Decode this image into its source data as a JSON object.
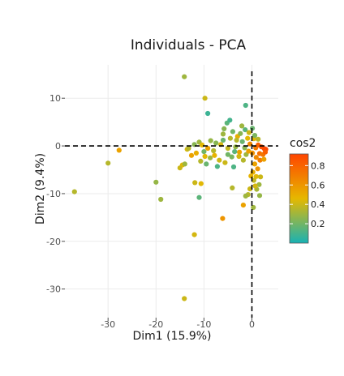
{
  "chart_data": {
    "type": "scatter",
    "title": "Individuals - PCA",
    "xlabel": "Dim1 (15.9%)",
    "ylabel": "Dim2 (9.4%)",
    "xlim": [
      -39,
      5.5
    ],
    "ylim": [
      -36,
      17
    ],
    "x_ticks": [
      -30,
      -20,
      -10,
      0
    ],
    "x_tick_labels": [
      "-30",
      "-20",
      "-10",
      "0"
    ],
    "y_ticks": [
      10,
      0,
      -10,
      -20,
      -30
    ],
    "y_tick_labels": [
      "10",
      "0",
      "-10",
      "-20",
      "-30"
    ],
    "grid": true,
    "reference_lines": {
      "x": 0,
      "y": 0,
      "style": "dashed"
    },
    "color_variable": "cos2",
    "legend": {
      "title": "cos2",
      "placement": "right",
      "ticks": [
        0.8,
        0.6,
        0.4,
        0.2
      ],
      "tick_labels": [
        "0.8",
        "0.6",
        "0.4",
        "0.2"
      ],
      "range": [
        0.0,
        0.92
      ],
      "gradient": [
        "#18b2b4",
        "#e6b800",
        "#ff4500"
      ]
    },
    "points": [
      {
        "x": -14.1,
        "y": 14.5,
        "cos2": 0.3
      },
      {
        "x": -9.8,
        "y": 10.0,
        "cos2": 0.4
      },
      {
        "x": -9.2,
        "y": 6.8,
        "cos2": 0.08
      },
      {
        "x": -1.3,
        "y": 8.5,
        "cos2": 0.12
      },
      {
        "x": -27.7,
        "y": -0.9,
        "cos2": 0.55
      },
      {
        "x": -30.0,
        "y": -3.6,
        "cos2": 0.35
      },
      {
        "x": -37.0,
        "y": -9.6,
        "cos2": 0.35
      },
      {
        "x": -20.0,
        "y": -7.6,
        "cos2": 0.28
      },
      {
        "x": -19.0,
        "y": -11.2,
        "cos2": 0.3
      },
      {
        "x": -11.9,
        "y": -7.7,
        "cos2": 0.4
      },
      {
        "x": -10.6,
        "y": -7.9,
        "cos2": 0.45
      },
      {
        "x": -11.0,
        "y": -10.8,
        "cos2": 0.15
      },
      {
        "x": -12.0,
        "y": -18.6,
        "cos2": 0.42
      },
      {
        "x": -6.1,
        "y": -15.2,
        "cos2": 0.6
      },
      {
        "x": -14.1,
        "y": -32.0,
        "cos2": 0.4
      },
      {
        "x": -14.5,
        "y": -4.0,
        "cos2": 0.45
      },
      {
        "x": -15.0,
        "y": -4.6,
        "cos2": 0.4
      },
      {
        "x": -14.0,
        "y": -3.8,
        "cos2": 0.3
      },
      {
        "x": -12.6,
        "y": -2.0,
        "cos2": 0.55
      },
      {
        "x": -13.5,
        "y": -0.7,
        "cos2": 0.42
      },
      {
        "x": -12.0,
        "y": 0.3,
        "cos2": 0.25
      },
      {
        "x": -11.0,
        "y": 0.8,
        "cos2": 0.3
      },
      {
        "x": -10.4,
        "y": 0.2,
        "cos2": 0.45
      },
      {
        "x": -11.6,
        "y": -1.5,
        "cos2": 0.5
      },
      {
        "x": -10.0,
        "y": -1.2,
        "cos2": 0.2
      },
      {
        "x": -9.5,
        "y": -3.8,
        "cos2": 0.18
      },
      {
        "x": -8.7,
        "y": -2.5,
        "cos2": 0.3
      },
      {
        "x": -8.0,
        "y": -1.0,
        "cos2": 0.35
      },
      {
        "x": -7.5,
        "y": 0.6,
        "cos2": 0.25
      },
      {
        "x": -6.8,
        "y": -3.0,
        "cos2": 0.4
      },
      {
        "x": -7.2,
        "y": -4.3,
        "cos2": 0.12
      },
      {
        "x": -6.0,
        "y": 2.5,
        "cos2": 0.3
      },
      {
        "x": -5.2,
        "y": 4.8,
        "cos2": 0.15
      },
      {
        "x": -4.6,
        "y": 5.4,
        "cos2": 0.1
      },
      {
        "x": -5.8,
        "y": 3.6,
        "cos2": 0.25
      },
      {
        "x": -4.0,
        "y": 3.0,
        "cos2": 0.2
      },
      {
        "x": -3.0,
        "y": 2.0,
        "cos2": 0.5
      },
      {
        "x": -2.1,
        "y": 4.2,
        "cos2": 0.3
      },
      {
        "x": -1.4,
        "y": 3.4,
        "cos2": 0.15
      },
      {
        "x": -0.6,
        "y": 2.8,
        "cos2": 0.4
      },
      {
        "x": -5.0,
        "y": -0.5,
        "cos2": 0.38
      },
      {
        "x": -4.2,
        "y": -2.3,
        "cos2": 0.22
      },
      {
        "x": -3.8,
        "y": -4.4,
        "cos2": 0.12
      },
      {
        "x": -3.4,
        "y": -0.2,
        "cos2": 0.28
      },
      {
        "x": -2.6,
        "y": -1.3,
        "cos2": 0.55
      },
      {
        "x": -2.0,
        "y": 0.9,
        "cos2": 0.18
      },
      {
        "x": -1.8,
        "y": -3.0,
        "cos2": 0.35
      },
      {
        "x": -1.2,
        "y": -1.8,
        "cos2": 0.3
      },
      {
        "x": -0.4,
        "y": 0.4,
        "cos2": 0.65
      },
      {
        "x": 0.4,
        "y": 1.5,
        "cos2": 0.45
      },
      {
        "x": 0.8,
        "y": -0.4,
        "cos2": 0.7
      },
      {
        "x": 1.3,
        "y": 0.2,
        "cos2": 0.8
      },
      {
        "x": 2.0,
        "y": -0.2,
        "cos2": 0.88
      },
      {
        "x": 2.6,
        "y": -0.6,
        "cos2": 0.9
      },
      {
        "x": 2.9,
        "y": -0.7,
        "cos2": 0.92
      },
      {
        "x": 1.6,
        "y": -1.6,
        "cos2": 0.75
      },
      {
        "x": 0.9,
        "y": -2.4,
        "cos2": 0.65
      },
      {
        "x": 1.7,
        "y": -3.0,
        "cos2": 0.7
      },
      {
        "x": 0.6,
        "y": -3.8,
        "cos2": 0.55
      },
      {
        "x": 1.2,
        "y": -4.8,
        "cos2": 0.6
      },
      {
        "x": 0.2,
        "y": -5.5,
        "cos2": 0.5
      },
      {
        "x": 0.9,
        "y": -6.4,
        "cos2": 0.45
      },
      {
        "x": 1.8,
        "y": -6.5,
        "cos2": 0.4
      },
      {
        "x": 0.4,
        "y": -7.2,
        "cos2": 0.38
      },
      {
        "x": 1.5,
        "y": -8.1,
        "cos2": 0.3
      },
      {
        "x": 1.0,
        "y": -9.1,
        "cos2": 0.32
      },
      {
        "x": 1.6,
        "y": -10.4,
        "cos2": 0.28
      },
      {
        "x": -0.4,
        "y": -9.0,
        "cos2": 0.4
      },
      {
        "x": -0.8,
        "y": -10.2,
        "cos2": 0.35
      },
      {
        "x": 0.3,
        "y": -12.9,
        "cos2": 0.3
      },
      {
        "x": -1.8,
        "y": -12.4,
        "cos2": 0.55
      },
      {
        "x": -1.3,
        "y": -10.5,
        "cos2": 0.3
      },
      {
        "x": -4.1,
        "y": -8.8,
        "cos2": 0.35
      },
      {
        "x": 1.3,
        "y": 1.4,
        "cos2": 0.35
      },
      {
        "x": 0.6,
        "y": 2.2,
        "cos2": 0.22
      },
      {
        "x": 0.1,
        "y": 3.7,
        "cos2": 0.18
      },
      {
        "x": -0.9,
        "y": 1.6,
        "cos2": 0.45
      },
      {
        "x": -2.4,
        "y": 2.6,
        "cos2": 0.25
      },
      {
        "x": -3.2,
        "y": 1.2,
        "cos2": 0.35
      },
      {
        "x": -6.5,
        "y": 0.3,
        "cos2": 0.42
      },
      {
        "x": -8.6,
        "y": 1.1,
        "cos2": 0.28
      },
      {
        "x": -9.2,
        "y": -0.5,
        "cos2": 0.55
      },
      {
        "x": -7.8,
        "y": -2.0,
        "cos2": 0.48
      },
      {
        "x": -5.6,
        "y": -3.5,
        "cos2": 0.4
      },
      {
        "x": -5.0,
        "y": -1.8,
        "cos2": 0.2
      },
      {
        "x": -4.5,
        "y": 1.6,
        "cos2": 0.35
      },
      {
        "x": -3.6,
        "y": -1.2,
        "cos2": 0.15
      },
      {
        "x": -2.7,
        "y": -2.2,
        "cos2": 0.42
      },
      {
        "x": -1.5,
        "y": -0.4,
        "cos2": 0.25
      },
      {
        "x": -0.7,
        "y": -1.1,
        "cos2": 0.55
      },
      {
        "x": 0.1,
        "y": -1.5,
        "cos2": 0.62
      },
      {
        "x": 2.3,
        "y": -1.8,
        "cos2": 0.72
      },
      {
        "x": 2.5,
        "y": -2.8,
        "cos2": 0.55
      },
      {
        "x": 2.8,
        "y": -1.3,
        "cos2": 0.82
      },
      {
        "x": 0.7,
        "y": -8.4,
        "cos2": 0.42
      },
      {
        "x": -0.2,
        "y": -6.3,
        "cos2": 0.48
      },
      {
        "x": -10.7,
        "y": -3.2,
        "cos2": 0.35
      },
      {
        "x": -9.8,
        "y": -2.2,
        "cos2": 0.45
      },
      {
        "x": -13.2,
        "y": -0.5,
        "cos2": 0.35
      },
      {
        "x": -6.0,
        "y": 1.2,
        "cos2": 0.18
      }
    ]
  }
}
